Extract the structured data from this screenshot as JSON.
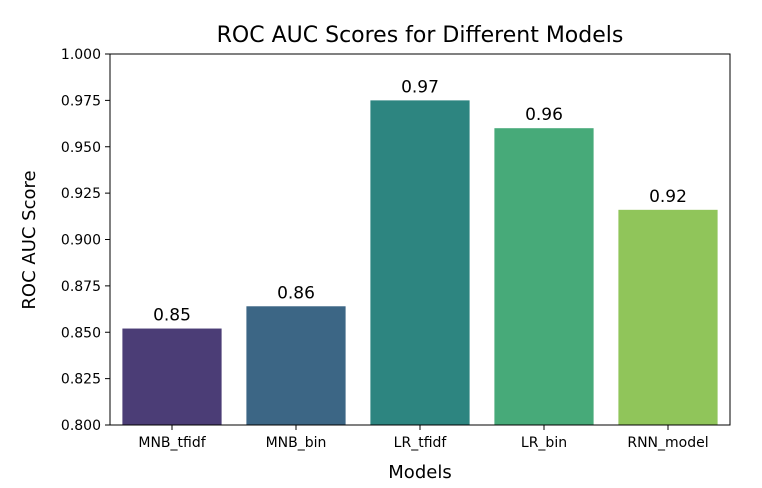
{
  "chart_data": {
    "type": "bar",
    "title": "ROC AUC Scores for Different Models",
    "xlabel": "Models",
    "ylabel": "ROC AUC Score",
    "categories": [
      "MNB_tfidf",
      "MNB_bin",
      "LR_tfidf",
      "LR_bin",
      "RNN_model"
    ],
    "values": [
      0.852,
      0.864,
      0.975,
      0.96,
      0.916
    ],
    "data_labels": [
      "0.85",
      "0.86",
      "0.97",
      "0.96",
      "0.92"
    ],
    "colors": [
      "#4b3d76",
      "#3c6685",
      "#2d8580",
      "#47aa79",
      "#90c55a"
    ],
    "ylim": [
      0.8,
      1.0
    ],
    "yticks": [
      0.8,
      0.825,
      0.85,
      0.875,
      0.9,
      0.925,
      0.95,
      0.975,
      1.0
    ],
    "ytick_labels": [
      "0.800",
      "0.825",
      "0.850",
      "0.875",
      "0.900",
      "0.925",
      "0.950",
      "0.975",
      "1.000"
    ],
    "grid": false,
    "legend": "none"
  }
}
